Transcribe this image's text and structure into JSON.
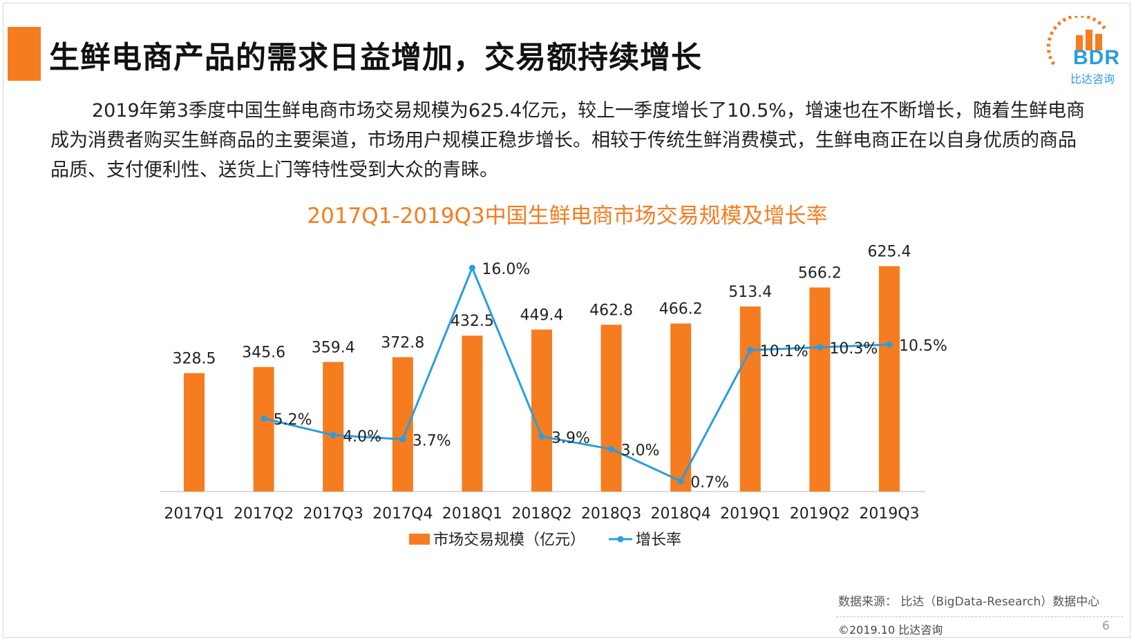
{
  "header": {
    "title": "生鲜电商产品的需求日益增加，交易额持续增长"
  },
  "logo": {
    "text": "BDR",
    "subtitle": "比达咨询"
  },
  "body_text": {
    "line1": "2019年第3季度中国生鲜电商市场交易规模为625.4亿元，较上一季度增长了10.5%，增速也在不断增长，随着生鲜电商",
    "line2": "成为消费者购买生鲜商品的主要渠道，市场用户规模正稳步增长。相较于传统生鲜消费模式，生鲜电商正在以自身优质的商品",
    "line3": "品质、支付便利性、送货上门等特性受到大众的青睐。"
  },
  "colors": {
    "bar": "#f57c1f",
    "line": "#2a9de0",
    "title_accent": "#f57c1f"
  },
  "chart_data": {
    "type": "bar",
    "title": "2017Q1-2019Q3中国生鲜电商市场交易规模及增长率",
    "categories": [
      "2017Q1",
      "2017Q2",
      "2017Q3",
      "2017Q4",
      "2018Q1",
      "2018Q2",
      "2018Q3",
      "2018Q4",
      "2019Q1",
      "2019Q2",
      "2019Q3"
    ],
    "series": [
      {
        "name": "市场交易规模（亿元）",
        "type": "bar",
        "values": [
          328.5,
          345.6,
          359.4,
          372.8,
          432.5,
          449.4,
          462.8,
          466.2,
          513.4,
          566.2,
          625.4
        ],
        "labels": [
          "328.5",
          "345.6",
          "359.4",
          "372.8",
          "432.5",
          "449.4",
          "462.8",
          "466.2",
          "513.4",
          "566.2",
          "625.4"
        ]
      },
      {
        "name": "增长率",
        "type": "line",
        "values": [
          null,
          5.2,
          4.0,
          3.7,
          16.0,
          3.9,
          3.0,
          0.7,
          10.1,
          10.3,
          10.5
        ],
        "labels": [
          "",
          "5.2%",
          "4.0%",
          "3.7%",
          "16.0%",
          "3.9%",
          "3.0%",
          "0.7%",
          "10.1%",
          "10.3%",
          "10.5%"
        ]
      }
    ],
    "ylim_bar": [
      0,
      700
    ],
    "ylim_line": [
      0,
      18
    ],
    "grid": false,
    "legend": "bottom-center"
  },
  "footer": {
    "source": "数据来源： 比达（BigData-Research）数据中心",
    "copyright": "©2019.10  比达咨询",
    "page_number": "6"
  }
}
